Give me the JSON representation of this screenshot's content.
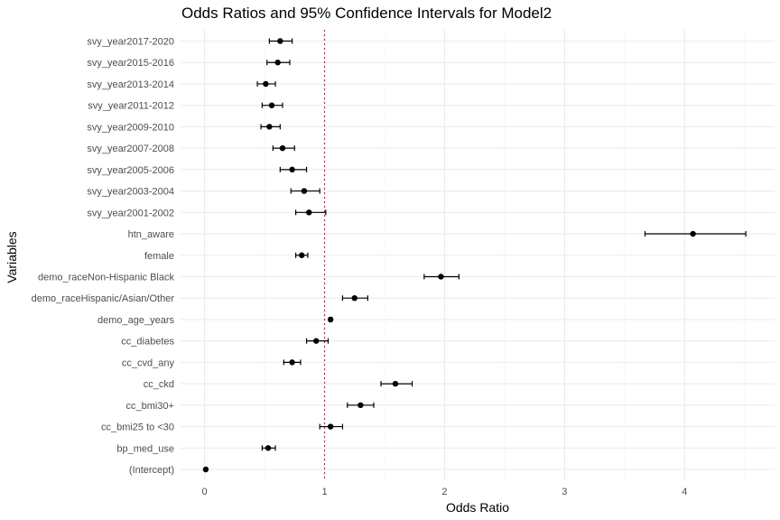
{
  "chart_data": {
    "type": "scatter",
    "subtype": "forest-plot",
    "title": "Odds Ratios and 95% Confidence Intervals for Model2",
    "xlabel": "Odds Ratio",
    "ylabel": "Variables",
    "xlim": [
      -0.2,
      4.75
    ],
    "x_ticks": [
      0,
      1,
      2,
      3,
      4
    ],
    "reference_line": {
      "x": 1,
      "color": "#e8202a",
      "style": "dotted"
    },
    "grid": true,
    "point_color": "#000000",
    "variables": [
      {
        "name": "svy_year2017-2020",
        "or": 0.63,
        "lower": 0.54,
        "upper": 0.73
      },
      {
        "name": "svy_year2015-2016",
        "or": 0.61,
        "lower": 0.52,
        "upper": 0.71
      },
      {
        "name": "svy_year2013-2014",
        "or": 0.51,
        "lower": 0.44,
        "upper": 0.59
      },
      {
        "name": "svy_year2011-2012",
        "or": 0.56,
        "lower": 0.48,
        "upper": 0.65
      },
      {
        "name": "svy_year2009-2010",
        "or": 0.54,
        "lower": 0.47,
        "upper": 0.63
      },
      {
        "name": "svy_year2007-2008",
        "or": 0.65,
        "lower": 0.57,
        "upper": 0.75
      },
      {
        "name": "svy_year2005-2006",
        "or": 0.73,
        "lower": 0.63,
        "upper": 0.85
      },
      {
        "name": "svy_year2003-2004",
        "or": 0.83,
        "lower": 0.72,
        "upper": 0.96
      },
      {
        "name": "svy_year2001-2002",
        "or": 0.87,
        "lower": 0.76,
        "upper": 1.01
      },
      {
        "name": "htn_aware",
        "or": 4.07,
        "lower": 3.67,
        "upper": 4.51
      },
      {
        "name": "female",
        "or": 0.81,
        "lower": 0.76,
        "upper": 0.86
      },
      {
        "name": "demo_raceNon-Hispanic Black",
        "or": 1.97,
        "lower": 1.83,
        "upper": 2.12
      },
      {
        "name": "demo_raceHispanic/Asian/Other",
        "or": 1.25,
        "lower": 1.15,
        "upper": 1.36
      },
      {
        "name": "demo_age_years",
        "or": 1.05,
        "lower": 1.04,
        "upper": 1.06
      },
      {
        "name": "cc_diabetes",
        "or": 0.93,
        "lower": 0.85,
        "upper": 1.03
      },
      {
        "name": "cc_cvd_any",
        "or": 0.73,
        "lower": 0.66,
        "upper": 0.8
      },
      {
        "name": "cc_ckd",
        "or": 1.59,
        "lower": 1.47,
        "upper": 1.73
      },
      {
        "name": "cc_bmi30+",
        "or": 1.3,
        "lower": 1.19,
        "upper": 1.41
      },
      {
        "name": "cc_bmi25 to <30",
        "or": 1.05,
        "lower": 0.96,
        "upper": 1.15
      },
      {
        "name": "bp_med_use",
        "or": 0.53,
        "lower": 0.48,
        "upper": 0.59
      },
      {
        "name": "(Intercept)",
        "or": 0.01,
        "lower": 0.01,
        "upper": 0.02
      }
    ]
  }
}
